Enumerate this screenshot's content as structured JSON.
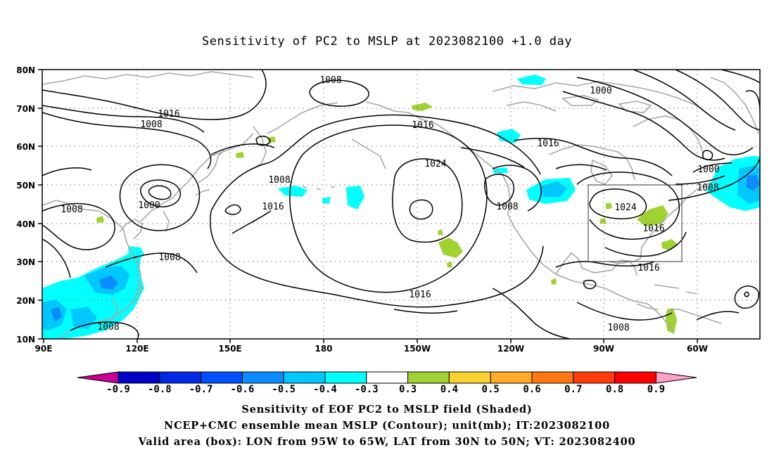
{
  "title": "Sensitivity of PC2 to MSLP at 2023082100 +1.0 day",
  "map": {
    "lat_labels": [
      "80N",
      "70N",
      "60N",
      "50N",
      "40N",
      "30N",
      "20N",
      "10N"
    ],
    "lon_labels": [
      "90E",
      "120E",
      "150E",
      "180",
      "150W",
      "120W",
      "90W",
      "60W"
    ],
    "contour_labels": [
      "1008",
      "1016",
      "1008",
      "1000",
      "1008",
      "1016",
      "1008",
      "1008",
      "1016",
      "1016",
      "1024",
      "1008",
      "1016",
      "1008",
      "1000",
      "1016",
      "1000",
      "1008",
      "1024",
      "1016",
      "1016",
      "1008"
    ],
    "valid_box": {
      "lon_range": [
        "95W",
        "65W"
      ],
      "lat_range": [
        "30N",
        "50N"
      ]
    }
  },
  "colorbar": {
    "labels": [
      "-0.9",
      "-0.8",
      "-0.7",
      "-0.6",
      "-0.5",
      "-0.4",
      "-0.3",
      "0.3",
      "0.4",
      "0.5",
      "0.6",
      "0.7",
      "0.8",
      "0.9"
    ],
    "colors": [
      "#c80096",
      "#0000c8",
      "#0028e6",
      "#0050ff",
      "#0a8cff",
      "#00c8ff",
      "#00ffff",
      "#ffffff",
      "#a0d232",
      "#fad232",
      "#ffaa28",
      "#ff7814",
      "#ff3c0a",
      "#ff0000",
      "#ffa0c8"
    ]
  },
  "captions": [
    "Sensitivity of EOF PC2 to MSLP field (Shaded)",
    "NCEP+CMC ensemble mean MSLP (Contour); unit(mb); IT:2023082100",
    "Valid area (box): LON from 95W to 65W, LAT from 30N to 50N; VT: 2023082400"
  ]
}
